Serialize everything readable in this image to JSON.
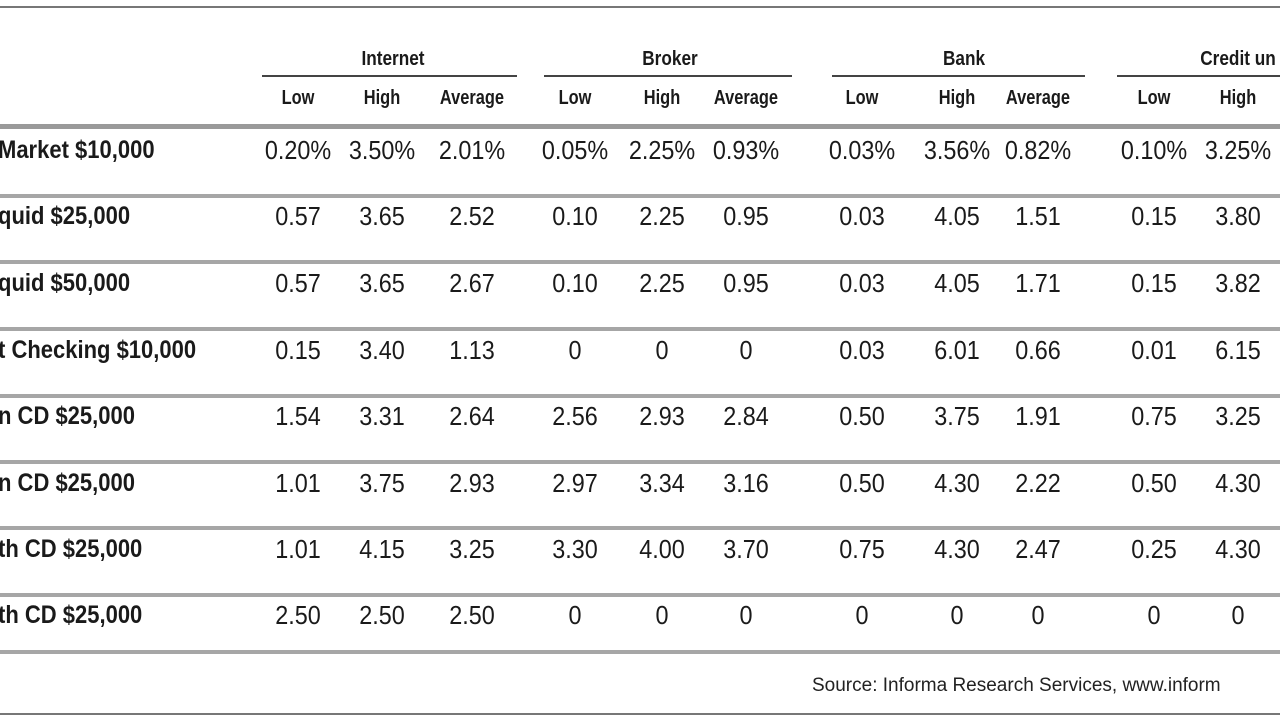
{
  "groups": [
    "Internet",
    "Broker",
    "Bank",
    "Credit un"
  ],
  "sub_headers": [
    "Low",
    "High",
    "Average"
  ],
  "rows": [
    {
      "label": "Market $10,000",
      "values": [
        "0.20%",
        "3.50%",
        "2.01%",
        "0.05%",
        "2.25%",
        "0.93%",
        "0.03%",
        "3.56%",
        "0.82%",
        "0.10%",
        "3.25%"
      ]
    },
    {
      "label": "quid $25,000",
      "values": [
        "0.57",
        "3.65",
        "2.52",
        "0.10",
        "2.25",
        "0.95",
        "0.03",
        "4.05",
        "1.51",
        "0.15",
        "3.80"
      ]
    },
    {
      "label": "quid $50,000",
      "values": [
        "0.57",
        "3.65",
        "2.67",
        "0.10",
        "2.25",
        "0.95",
        "0.03",
        "4.05",
        "1.71",
        "0.15",
        "3.82"
      ]
    },
    {
      "label": "t Checking $10,000",
      "values": [
        "0.15",
        "3.40",
        "1.13",
        "0",
        "0",
        "0",
        "0.03",
        "6.01",
        "0.66",
        "0.01",
        "6.15"
      ]
    },
    {
      "label": "n CD $25,000",
      "values": [
        "1.54",
        "3.31",
        "2.64",
        "2.56",
        "2.93",
        "2.84",
        "0.50",
        "3.75",
        "1.91",
        "0.75",
        "3.25"
      ]
    },
    {
      "label": "n CD $25,000",
      "values": [
        "1.01",
        "3.75",
        "2.93",
        "2.97",
        "3.34",
        "3.16",
        "0.50",
        "4.30",
        "2.22",
        "0.50",
        "4.30"
      ]
    },
    {
      "label": "th CD $25,000",
      "values": [
        "1.01",
        "4.15",
        "3.25",
        "3.30",
        "4.00",
        "3.70",
        "0.75",
        "4.30",
        "2.47",
        "0.25",
        "4.30"
      ]
    },
    {
      "label": "th CD $25,000",
      "values": [
        "2.50",
        "2.50",
        "2.50",
        "0",
        "0",
        "0",
        "0",
        "0",
        "0",
        "0",
        "0"
      ]
    }
  ],
  "source": "Source: Informa Research Services, www.inform"
}
